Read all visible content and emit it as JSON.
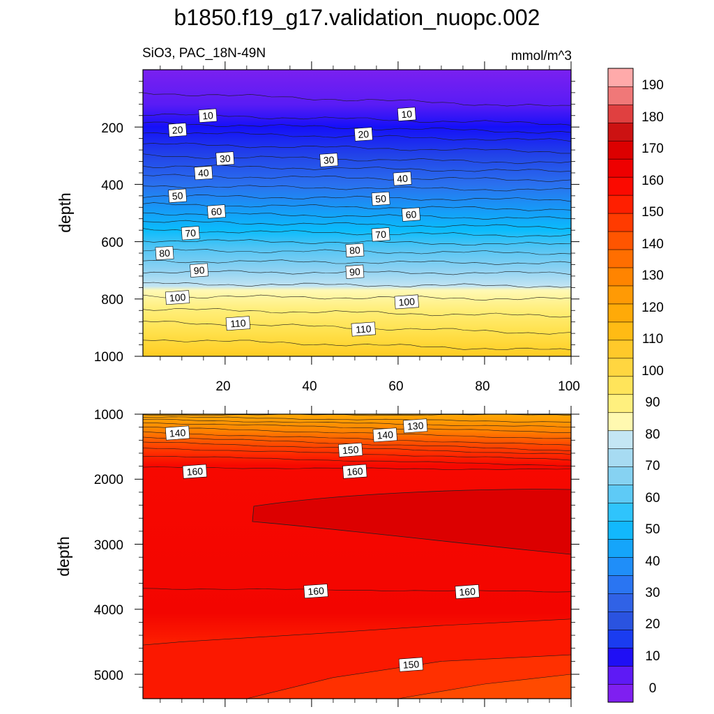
{
  "title": "b1850.f19_g17.validation_nuopc.002",
  "chart_data": [
    {
      "type": "contour",
      "panel": "upper",
      "left_label": "SiO3, PAC_18N-49N",
      "right_label": "mmol/m^3",
      "ylabel": "depth",
      "xlim": [
        1,
        100
      ],
      "ylim": [
        0,
        1000
      ],
      "y_inverted": true,
      "x_ticks": [
        "20",
        "40",
        "60",
        "80",
        "100"
      ],
      "y_ticks": [
        "200",
        "400",
        "600",
        "800",
        "1000"
      ],
      "contour_lines": [
        {
          "level": 10,
          "depth_start": 155,
          "depth_end": 190
        },
        {
          "level": 20,
          "depth_start": 218,
          "depth_end": 248
        },
        {
          "level": 30,
          "depth_start": 300,
          "depth_end": 325
        },
        {
          "level": 40,
          "depth_start": 370,
          "depth_end": 385
        },
        {
          "level": 50,
          "depth_start": 440,
          "depth_end": 455
        },
        {
          "level": 60,
          "depth_start": 500,
          "depth_end": 520
        },
        {
          "level": 70,
          "depth_start": 560,
          "depth_end": 580
        },
        {
          "level": 80,
          "depth_start": 630,
          "depth_end": 640
        },
        {
          "level": 90,
          "depth_start": 705,
          "depth_end": 710
        },
        {
          "level": 100,
          "depth_start": 790,
          "depth_end": 800
        },
        {
          "level": 110,
          "depth_start": 880,
          "depth_end": 920
        }
      ],
      "labels": [
        {
          "text": "10",
          "x": 16,
          "y": 160
        },
        {
          "text": "10",
          "x": 62,
          "y": 155
        },
        {
          "text": "20",
          "x": 9,
          "y": 210
        },
        {
          "text": "20",
          "x": 52,
          "y": 225
        },
        {
          "text": "30",
          "x": 20,
          "y": 310
        },
        {
          "text": "30",
          "x": 44,
          "y": 315
        },
        {
          "text": "40",
          "x": 15,
          "y": 360
        },
        {
          "text": "40",
          "x": 61,
          "y": 380
        },
        {
          "text": "50",
          "x": 9,
          "y": 440
        },
        {
          "text": "50",
          "x": 56,
          "y": 450
        },
        {
          "text": "60",
          "x": 18,
          "y": 495
        },
        {
          "text": "60",
          "x": 63,
          "y": 505
        },
        {
          "text": "70",
          "x": 12,
          "y": 570
        },
        {
          "text": "70",
          "x": 56,
          "y": 575
        },
        {
          "text": "80",
          "x": 6,
          "y": 640
        },
        {
          "text": "80",
          "x": 50,
          "y": 630
        },
        {
          "text": "90",
          "x": 14,
          "y": 700
        },
        {
          "text": "90",
          "x": 50,
          "y": 705
        },
        {
          "text": "100",
          "x": 9,
          "y": 795
        },
        {
          "text": "100",
          "x": 62,
          "y": 810
        },
        {
          "text": "110",
          "x": 23,
          "y": 885
        },
        {
          "text": "110",
          "x": 52,
          "y": 905
        }
      ]
    },
    {
      "type": "contour",
      "panel": "lower",
      "ylabel": "depth",
      "xlim": [
        1,
        100
      ],
      "ylim": [
        1000,
        5375
      ],
      "y_inverted": true,
      "y_ticks": [
        "1000",
        "2000",
        "3000",
        "4000",
        "5000"
      ],
      "contour_lines": [
        {
          "level": 130,
          "depth_start": 1050,
          "depth_end": 1300
        },
        {
          "level": 140,
          "depth_start": 1350,
          "depth_end": 1550
        },
        {
          "level": 150,
          "depth_start": 1650,
          "depth_end": 1800
        },
        {
          "level": 170,
          "core_depth": 2550,
          "x_start": 27
        },
        {
          "level": 160,
          "depth_start": 3700,
          "depth_end": 3750
        }
      ],
      "labels": [
        {
          "text": "130",
          "x": 64,
          "y": 1180
        },
        {
          "text": "140",
          "x": 9,
          "y": 1290
        },
        {
          "text": "140",
          "x": 57,
          "y": 1320
        },
        {
          "text": "150",
          "x": 49,
          "y": 1550
        },
        {
          "text": "160",
          "x": 13,
          "y": 1880
        },
        {
          "text": "160",
          "x": 50,
          "y": 1880
        },
        {
          "text": "160",
          "x": 41,
          "y": 3720
        },
        {
          "text": "160",
          "x": 76,
          "y": 3730
        },
        {
          "text": "150",
          "x": 63,
          "y": 4850
        }
      ]
    }
  ],
  "colorbar": {
    "levels": [
      "0",
      "10",
      "20",
      "30",
      "40",
      "50",
      "60",
      "70",
      "80",
      "90",
      "100",
      "110",
      "120",
      "130",
      "140",
      "150",
      "160",
      "170",
      "180",
      "190"
    ],
    "colors": [
      "#7f1ff0",
      "#5e1af5",
      "#1f0ff5",
      "#1a3cf0",
      "#2a53e0",
      "#3062e6",
      "#2a75f2",
      "#1f8ef9",
      "#15a5fa",
      "#12b8fc",
      "#2fc4fc",
      "#5ecaf6",
      "#86d2f2",
      "#a7dbf2",
      "#c4e6f4",
      "#fff9b0",
      "#fff07e",
      "#ffe45a",
      "#ffd640",
      "#ffc92a",
      "#ffbb14",
      "#ffaa08",
      "#ff9a05",
      "#ff8400",
      "#ff6e00",
      "#ff5500",
      "#ff3b00",
      "#ff1f00",
      "#fb0a00",
      "#ee0000",
      "#dc0000",
      "#cc1212",
      "#e04040",
      "#f07878",
      "#ffaaaa"
    ]
  }
}
